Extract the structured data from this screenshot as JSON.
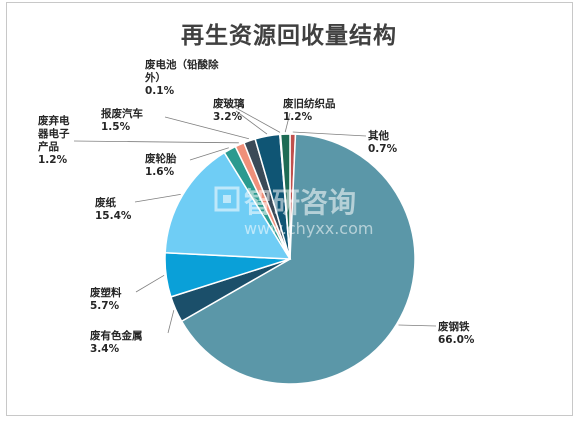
{
  "chart_data": {
    "type": "pie",
    "title": "再生资源回收量结构",
    "unit": "%",
    "start_angle_deg": 90,
    "direction": "clockwise",
    "slices": [
      {
        "label": "其他",
        "value": 0.7,
        "display": "0.7%",
        "color": "#c0504d"
      },
      {
        "label": "废钢铁",
        "value": 66.0,
        "display": "66.0%",
        "color": "#5b97a8"
      },
      {
        "label": "废有色金属",
        "value": 3.4,
        "display": "3.4%",
        "color": "#1b4f6a"
      },
      {
        "label": "废塑料",
        "value": 5.7,
        "display": "5.7%",
        "color": "#0aa0d8"
      },
      {
        "label": "废纸",
        "value": 15.4,
        "display": "15.4%",
        "color": "#6fcdf5"
      },
      {
        "label": "废轮胎",
        "value": 1.6,
        "display": "1.6%",
        "color": "#2b9a8f"
      },
      {
        "label": "废弃电器电子产品",
        "value": 1.2,
        "display": "1.2%",
        "color": "#f0907a"
      },
      {
        "label": "报废汽车",
        "value": 1.5,
        "display": "1.5%",
        "color": "#3a4a58"
      },
      {
        "label": "废玻璃",
        "value": 3.2,
        "display": "3.2%",
        "color": "#0f5574"
      },
      {
        "label": "废电池（铅酸除外）",
        "value": 0.1,
        "display": "0.1%",
        "color": "#9fd4e8"
      },
      {
        "label": "废旧纺织品",
        "value": 1.2,
        "display": "1.2%",
        "color": "#1e6b55"
      }
    ],
    "label_lines": [
      [
        "其他",
        "0.7%"
      ],
      [
        "废钢铁",
        "66.0%"
      ],
      [
        "废有色金属",
        "3.4%"
      ],
      [
        "废塑料",
        "5.7%"
      ],
      [
        "废纸",
        "15.4%"
      ],
      [
        "废轮胎",
        "1.6%"
      ],
      [
        "废弃电",
        "器电子",
        "产品",
        "1.2%"
      ],
      [
        "报废汽车",
        "1.5%"
      ],
      [
        "废玻璃",
        "3.2%"
      ],
      [
        "废电池（铅酸除",
        "外）",
        "0.1%"
      ],
      [
        "废旧纺织品",
        "1.2%"
      ]
    ]
  },
  "watermark": {
    "brand": "智研咨询",
    "url": "www.chyxx.com"
  }
}
